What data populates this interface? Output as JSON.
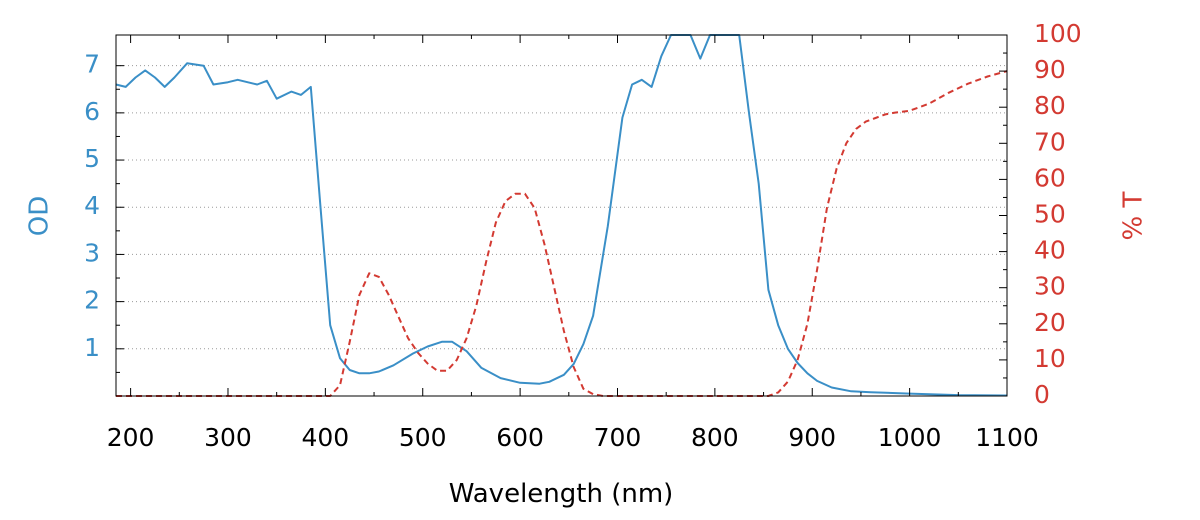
{
  "chart_data": {
    "type": "line",
    "xlabel": "Wavelength (nm)",
    "y1label": "OD",
    "y2label": "% T",
    "xlim": [
      185,
      1100
    ],
    "y1lim": [
      0,
      7.65
    ],
    "y2lim": [
      0,
      100
    ],
    "x_ticks": [
      "200",
      "300",
      "400",
      "500",
      "600",
      "700",
      "800",
      "900",
      "1000",
      "1100"
    ],
    "y1_ticks": [
      "1",
      "2",
      "3",
      "4",
      "5",
      "6",
      "7"
    ],
    "y2_ticks": [
      "0",
      "10",
      "20",
      "30",
      "40",
      "50",
      "60",
      "70",
      "80",
      "90",
      "100"
    ],
    "grid": "horizontal dotted",
    "colors": {
      "od": "#3a8fc7",
      "transmission": "#d33a32",
      "axis": "#000000",
      "grid": "#9a9a9a"
    },
    "series": [
      {
        "axis": "left",
        "style": "solid",
        "x": [
          185,
          195,
          205,
          215,
          225,
          235,
          245,
          258,
          275,
          285,
          300,
          310,
          320,
          330,
          340,
          350,
          365,
          375,
          385,
          395,
          405,
          415,
          425,
          435,
          445,
          455,
          470,
          490,
          505,
          520,
          530,
          545,
          560,
          580,
          600,
          620,
          630,
          645,
          655,
          665,
          675,
          690,
          705,
          715,
          725,
          735,
          745,
          755,
          765,
          775,
          785,
          795,
          805,
          815,
          825,
          835,
          845,
          855,
          865,
          875,
          885,
          895,
          905,
          920,
          940,
          960,
          1000,
          1050,
          1100
        ],
        "y": [
          6.6,
          6.55,
          6.75,
          6.9,
          6.75,
          6.55,
          6.75,
          7.05,
          7.0,
          6.6,
          6.65,
          6.7,
          6.65,
          6.6,
          6.68,
          6.3,
          6.45,
          6.38,
          6.55,
          4.0,
          1.5,
          0.8,
          0.55,
          0.48,
          0.48,
          0.52,
          0.65,
          0.9,
          1.05,
          1.15,
          1.15,
          0.95,
          0.6,
          0.38,
          0.28,
          0.26,
          0.3,
          0.45,
          0.68,
          1.1,
          1.7,
          3.6,
          5.9,
          6.6,
          6.7,
          6.55,
          7.2,
          7.65,
          7.65,
          7.65,
          7.15,
          7.65,
          7.65,
          7.65,
          7.65,
          6.0,
          4.5,
          2.25,
          1.5,
          1.0,
          0.7,
          0.48,
          0.32,
          0.18,
          0.1,
          0.08,
          0.05,
          0.02,
          0.01
        ]
      },
      {
        "axis": "right",
        "style": "dashed",
        "x": [
          185,
          300,
          390,
          405,
          415,
          425,
          435,
          445,
          455,
          465,
          475,
          485,
          495,
          505,
          515,
          525,
          535,
          545,
          555,
          565,
          575,
          585,
          595,
          605,
          615,
          625,
          635,
          645,
          655,
          665,
          675,
          685,
          695,
          705,
          800,
          845,
          855,
          865,
          875,
          885,
          895,
          905,
          915,
          925,
          935,
          945,
          955,
          965,
          975,
          985,
          1000,
          1020,
          1040,
          1060,
          1080,
          1100
        ],
        "y": [
          0,
          0,
          0,
          0,
          3,
          15,
          28,
          34,
          33,
          28,
          22,
          16,
          12,
          9,
          7,
          7,
          10,
          16,
          25,
          37,
          48,
          54,
          56,
          56,
          52,
          42,
          30,
          18,
          8,
          2,
          0.5,
          0,
          0,
          0,
          0,
          0,
          0,
          1,
          4,
          10,
          20,
          35,
          52,
          63,
          70,
          74,
          76,
          77,
          78,
          78.5,
          79,
          81,
          84,
          86.5,
          88.5,
          90
        ]
      }
    ]
  }
}
